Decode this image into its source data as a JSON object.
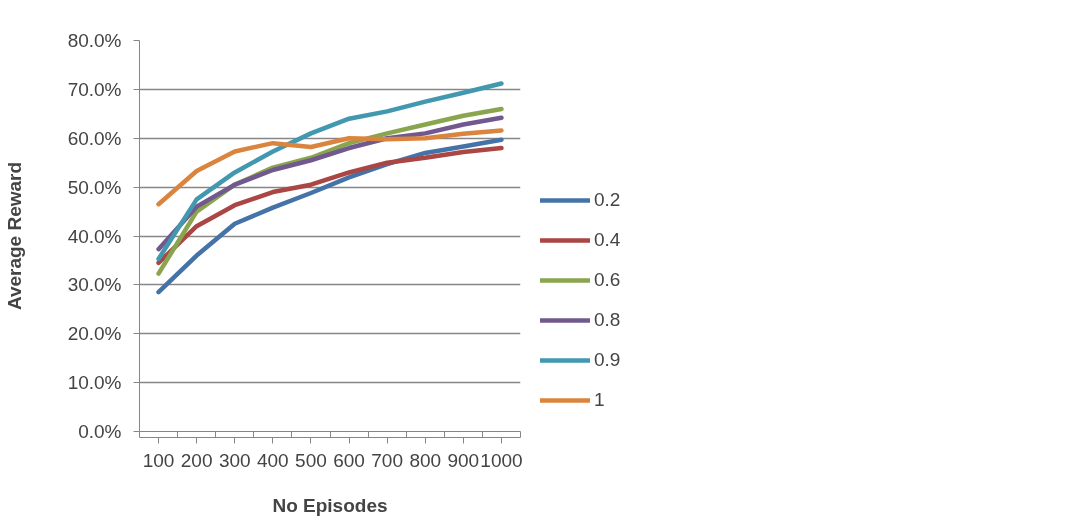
{
  "chart_data": {
    "type": "line",
    "xlabel": "No Episodes",
    "ylabel": "Average Reward",
    "categories": [
      "100",
      "200",
      "300",
      "400",
      "500",
      "600",
      "700",
      "800",
      "900",
      "1000"
    ],
    "ylim": [
      0,
      80
    ],
    "yticks": [
      {
        "value": 0,
        "label": "0.0%"
      },
      {
        "value": 10,
        "label": "10.0%"
      },
      {
        "value": 20,
        "label": "20.0%"
      },
      {
        "value": 30,
        "label": "30.0%"
      },
      {
        "value": 40,
        "label": "40.0%"
      },
      {
        "value": 50,
        "label": "50.0%"
      },
      {
        "value": 60,
        "label": "60.0%"
      },
      {
        "value": 70,
        "label": "70.0%"
      },
      {
        "value": 80,
        "label": "80.0%"
      }
    ],
    "grid": "y",
    "legend": "right",
    "marker": "none",
    "line_style": "solid",
    "series": [
      {
        "name": "0.2",
        "color": "#4573a7",
        "values": [
          28.5,
          36,
          42.5,
          45.8,
          48.8,
          52,
          54.7,
          57,
          58.3,
          59.7
        ]
      },
      {
        "name": "0.4",
        "color": "#aa4643",
        "values": [
          34.5,
          42,
          46.3,
          49,
          50.5,
          53,
          55,
          56,
          57.2,
          58
        ]
      },
      {
        "name": "0.6",
        "color": "#89a54e",
        "values": [
          32.3,
          45,
          50.5,
          54,
          56,
          59,
          61,
          62.8,
          64.6,
          66
        ]
      },
      {
        "name": "0.8",
        "color": "#71588f",
        "values": [
          37.3,
          46,
          50.5,
          53.5,
          55.5,
          58,
          60,
          61,
          62.8,
          64.2
        ]
      },
      {
        "name": "0.9",
        "color": "#4198af",
        "values": [
          35.3,
          47.5,
          53,
          57.3,
          61,
          64,
          65.5,
          67.5,
          69.3,
          71.2
        ]
      },
      {
        "name": "1",
        "color": "#db843d",
        "values": [
          46.5,
          53.3,
          57.3,
          59,
          58.2,
          60,
          59.8,
          60,
          60.9,
          61.6
        ]
      }
    ]
  }
}
